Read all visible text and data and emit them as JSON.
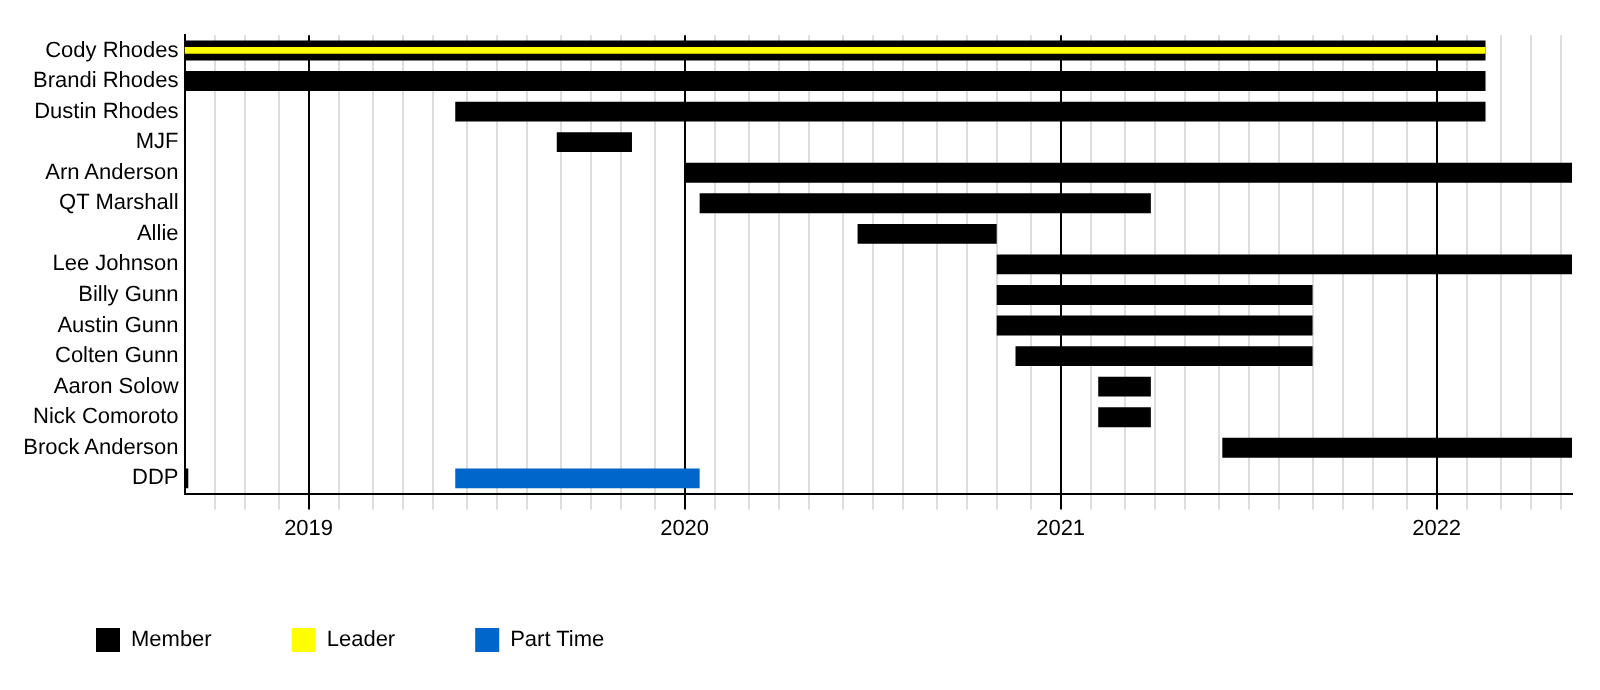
{
  "chart_data": {
    "type": "bar",
    "orientation": "horizontal",
    "categories": [
      "Cody Rhodes",
      "Brandi Rhodes",
      "Dustin Rhodes",
      "MJF",
      "Arn Anderson",
      "QT Marshall",
      "Allie",
      "Lee Johnson",
      "Billy Gunn",
      "Austin Gunn",
      "Colten Gunn",
      "Aaron Solow",
      "Nick Comoroto",
      "Brock Anderson",
      "DDP"
    ],
    "series": [
      {
        "name": "Member",
        "color": "#000000",
        "base": [
          2018.67,
          2018.67,
          2019.39,
          2019.66,
          2020.0,
          2020.04,
          2020.46,
          2020.83,
          2020.83,
          2020.83,
          2020.88,
          2021.1,
          2021.1,
          2021.43,
          2018.67
        ],
        "values": [
          3.46,
          3.46,
          2.74,
          0.2,
          2.36,
          1.2,
          0.37,
          1.53,
          0.84,
          0.84,
          0.79,
          0.14,
          0.14,
          0.93,
          0.01
        ]
      },
      {
        "name": "Leader",
        "color": "#ffff00",
        "base": [
          2018.67,
          null,
          null,
          null,
          null,
          null,
          null,
          null,
          null,
          null,
          null,
          null,
          null,
          null,
          null
        ],
        "values": [
          3.46,
          null,
          null,
          null,
          null,
          null,
          null,
          null,
          null,
          null,
          null,
          null,
          null,
          null,
          null
        ]
      },
      {
        "name": "Part Time",
        "color": "#0066cc",
        "base": [
          null,
          null,
          null,
          null,
          null,
          null,
          null,
          null,
          null,
          null,
          null,
          null,
          null,
          null,
          2019.39
        ],
        "values": [
          null,
          null,
          null,
          null,
          null,
          null,
          null,
          null,
          null,
          null,
          null,
          null,
          null,
          null,
          0.65
        ]
      }
    ],
    "xlim": [
      2018.67,
      2022.36
    ],
    "xticks": [
      {
        "value": 2018.75,
        "label": null
      },
      {
        "value": 2018.83,
        "label": null
      },
      {
        "value": 2018.92,
        "label": null
      },
      2019,
      {
        "value": 2019.08,
        "label": null
      },
      {
        "value": 2019.17,
        "label": null
      },
      {
        "value": 2019.25,
        "label": null
      },
      {
        "value": 2019.33,
        "label": null
      },
      {
        "value": 2019.42,
        "label": null
      },
      {
        "value": 2019.5,
        "label": null
      },
      {
        "value": 2019.58,
        "label": null
      },
      {
        "value": 2019.67,
        "label": null
      },
      {
        "value": 2019.75,
        "label": null
      },
      {
        "value": 2019.83,
        "label": null
      },
      {
        "value": 2019.92,
        "label": null
      },
      2020,
      {
        "value": 2020.08,
        "label": null
      },
      {
        "value": 2020.17,
        "label": null
      },
      {
        "value": 2020.25,
        "label": null
      },
      {
        "value": 2020.33,
        "label": null
      },
      {
        "value": 2020.42,
        "label": null
      },
      {
        "value": 2020.5,
        "label": null
      },
      {
        "value": 2020.58,
        "label": null
      },
      {
        "value": 2020.67,
        "label": null
      },
      {
        "value": 2020.75,
        "label": null
      },
      {
        "value": 2020.83,
        "label": null
      },
      {
        "value": 2020.92,
        "label": null
      },
      2021,
      {
        "value": 2021.08,
        "label": null
      },
      {
        "value": 2021.17,
        "label": null
      },
      {
        "value": 2021.25,
        "label": null
      },
      {
        "value": 2021.33,
        "label": null
      },
      {
        "value": 2021.42,
        "label": null
      },
      {
        "value": 2021.5,
        "label": null
      },
      {
        "value": 2021.58,
        "label": null
      },
      {
        "value": 2021.67,
        "label": null
      },
      {
        "value": 2021.75,
        "label": null
      },
      {
        "value": 2021.83,
        "label": null
      },
      {
        "value": 2021.92,
        "label": null
      },
      2022,
      {
        "value": 2022.08,
        "label": null
      },
      {
        "value": 2022.17,
        "label": null
      },
      {
        "value": 2022.25,
        "label": null
      },
      {
        "value": 2022.33,
        "label": null
      }
    ],
    "grid": "x",
    "legend": "bottom left"
  }
}
